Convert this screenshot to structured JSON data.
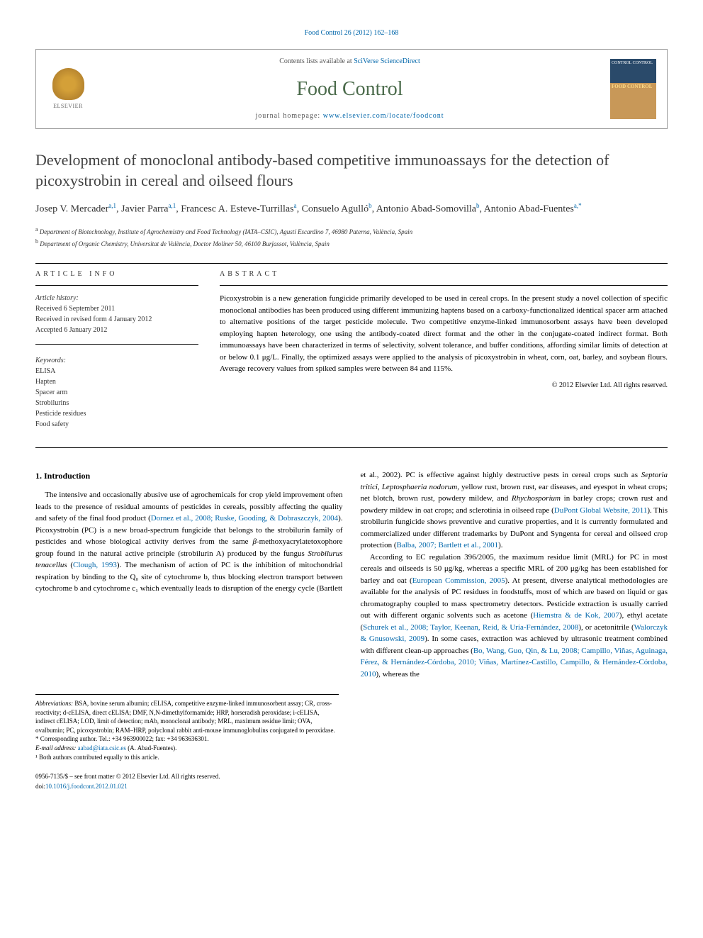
{
  "header": {
    "citation": "Food Control 26 (2012) 162–168",
    "contents_prefix": "Contents lists available at ",
    "contents_link": "SciVerse ScienceDirect",
    "journal_title": "Food Control",
    "homepage_prefix": "journal homepage: ",
    "homepage_url": "www.elsevier.com/locate/foodcont",
    "elsevier_label": "ELSEVIER",
    "cover_text_top": "CONTROL CONTROL",
    "cover_text_mid": "FOOD CONTROL"
  },
  "article": {
    "title": "Development of monoclonal antibody-based competitive immunoassays for the detection of picoxystrobin in cereal and oilseed flours",
    "authors_html": "Josep V. Mercader<sup>a,1</sup>, Javier Parra<sup>a,1</sup>, Francesc A. Esteve-Turrillas<sup>a</sup>, Consuelo Agulló<sup>b</sup>, Antonio Abad-Somovilla<sup>b</sup>, Antonio Abad-Fuentes<sup>a,*</sup>",
    "affiliations": {
      "a": "Department of Biotechnology, Institute of Agrochemistry and Food Technology (IATA–CSIC), Agustí Escardino 7, 46980 Paterna, València, Spain",
      "b": "Department of Organic Chemistry, Universitat de València, Doctor Moliner 50, 46100 Burjassot, València, Spain"
    }
  },
  "article_info": {
    "header": "ARTICLE INFO",
    "history_label": "Article history:",
    "received": "Received 6 September 2011",
    "revised": "Received in revised form 4 January 2012",
    "accepted": "Accepted 6 January 2012",
    "keywords_label": "Keywords:",
    "keywords": [
      "ELISA",
      "Hapten",
      "Spacer arm",
      "Strobilurins",
      "Pesticide residues",
      "Food safety"
    ]
  },
  "abstract": {
    "header": "ABSTRACT",
    "text": "Picoxystrobin is a new generation fungicide primarily developed to be used in cereal crops. In the present study a novel collection of specific monoclonal antibodies has been produced using different immunizing haptens based on a carboxy-functionalized identical spacer arm attached to alternative positions of the target pesticide molecule. Two competitive enzyme-linked immunosorbent assays have been developed employing hapten heterology, one using the antibody-coated direct format and the other in the conjugate-coated indirect format. Both immunoassays have been characterized in terms of selectivity, solvent tolerance, and buffer conditions, affording similar limits of detection at or below 0.1 μg/L. Finally, the optimized assays were applied to the analysis of picoxystrobin in wheat, corn, oat, barley, and soybean flours. Average recovery values from spiked samples were between 84 and 115%.",
    "copyright": "© 2012 Elsevier Ltd. All rights reserved."
  },
  "body": {
    "section1_title": "1. Introduction",
    "col1_para": "The intensive and occasionally abusive use of agrochemicals for crop yield improvement often leads to the presence of residual amounts of pesticides in cereals, possibly affecting the quality and safety of the final food product (Dornez et al., 2008; Ruske, Gooding, & Dobraszczyk, 2004). Picoxystrobin (PC) is a new broad-spectrum fungicide that belongs to the strobilurin family of pesticides and whose biological activity derives from the same β-methoxyacrylatetoxophore group found in the natural active principle (strobilurin A) produced by the fungus Strobilurus tenacellus (Clough, 1993). The mechanism of action of PC is the inhibition of mitochondrial respiration by binding to the Q₀ site of cytochrome b, thus blocking electron transport between cytochrome b and cytochrome c₁ which eventually leads to disruption of the energy cycle (Bartlett",
    "col2_para1": "et al., 2002). PC is effective against highly destructive pests in cereal crops such as Septoria tritici, Leptosphaeria nodorum, yellow rust, brown rust, ear diseases, and eyespot in wheat crops; net blotch, brown rust, powdery mildew, and Rhychosporium in barley crops; crown rust and powdery mildew in oat crops; and sclerotinia in oilseed rape (DuPont Global Website, 2011). This strobilurin fungicide shows preventive and curative properties, and it is currently formulated and commercialized under different trademarks by DuPont and Syngenta for cereal and oilseed crop protection (Balba, 2007; Bartlett et al., 2001).",
    "col2_para2": "According to EC regulation 396/2005, the maximum residue limit (MRL) for PC in most cereals and oilseeds is 50 μg/kg, whereas a specific MRL of 200 μg/kg has been established for barley and oat (European Commission, 2005). At present, diverse analytical methodologies are available for the analysis of PC residues in foodstuffs, most of which are based on liquid or gas chromatography coupled to mass spectrometry detectors. Pesticide extraction is usually carried out with different organic solvents such as acetone (Hiemstra & de Kok, 2007), ethyl acetate (Schurek et al., 2008; Taylor, Keenan, Reid, & Uría-Fernández, 2008), or acetonitrile (Walorczyk & Gnusowski, 2009). In some cases, extraction was achieved by ultrasonic treatment combined with different clean-up approaches (Bo, Wang, Guo, Qin, & Lu, 2008; Campillo, Viñas, Aguinaga, Férez, & Hernández-Córdoba, 2010; Viñas, Martínez-Castillo, Campillo, & Hernández-Córdoba, 2010), whereas the"
  },
  "footnotes": {
    "abbrev_label": "Abbreviations:",
    "abbrev_text": " BSA, bovine serum albumin; cELISA, competitive enzyme-linked immunosorbent assay; CR, cross-reactivity; d-cELISA, direct cELISA; DMF, N,N-dimethylformamide; HRP, horseradish peroxidase; i-cELISA, indirect cELISA; LOD, limit of detection; mAb, monoclonal antibody; MRL, maximum residue limit; OVA, ovalbumin; PC, picoxystrobin; RAM–HRP, polyclonal rabbit anti-mouse immunoglobulins conjugated to peroxidase.",
    "corr_label": "* Corresponding author. Tel.: +34 963900022; fax: +34 963636301.",
    "email_label": "E-mail address:",
    "email": "aabad@iata.csic.es",
    "email_name": " (A. Abad-Fuentes).",
    "note1": "¹ Both authors contributed equally to this article."
  },
  "footer": {
    "line1": "0956-7135/$ – see front matter © 2012 Elsevier Ltd. All rights reserved.",
    "doi_prefix": "doi:",
    "doi": "10.1016/j.foodcont.2012.01.021"
  },
  "colors": {
    "link": "#0066aa",
    "journal_green": "#4a6a4a",
    "title_gray": "#414141",
    "text": "#000000",
    "border": "#999999"
  }
}
